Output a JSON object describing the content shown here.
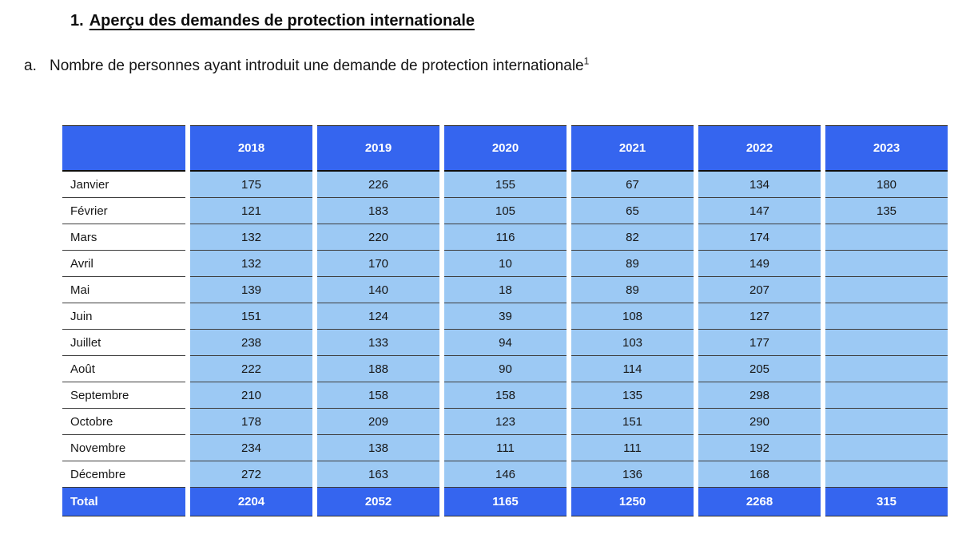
{
  "page": {
    "heading_number": "1.",
    "heading_text": "Aperçu des demandes de protection internationale",
    "item_letter": "a.",
    "item_text": "Nombre de personnes ayant introduit une demande de protection internationale",
    "footnote_ref": "1"
  },
  "colors": {
    "header_blue": "#3565EF",
    "cell_light_blue": "#9CC9F4",
    "header_text": "#FFFFFF",
    "body_text": "#161616"
  },
  "table": {
    "corner_label": "",
    "years": [
      "2018",
      "2019",
      "2020",
      "2021",
      "2022",
      "2023"
    ],
    "rows": [
      {
        "month": "Janvier",
        "values": [
          "175",
          "226",
          "155",
          "67",
          "134",
          "180"
        ]
      },
      {
        "month": "Février",
        "values": [
          "121",
          "183",
          "105",
          "65",
          "147",
          "135"
        ]
      },
      {
        "month": "Mars",
        "values": [
          "132",
          "220",
          "116",
          "82",
          "174",
          ""
        ]
      },
      {
        "month": "Avril",
        "values": [
          "132",
          "170",
          "10",
          "89",
          "149",
          ""
        ]
      },
      {
        "month": "Mai",
        "values": [
          "139",
          "140",
          "18",
          "89",
          "207",
          ""
        ]
      },
      {
        "month": "Juin",
        "values": [
          "151",
          "124",
          "39",
          "108",
          "127",
          ""
        ]
      },
      {
        "month": "Juillet",
        "values": [
          "238",
          "133",
          "94",
          "103",
          "177",
          ""
        ]
      },
      {
        "month": "Août",
        "values": [
          "222",
          "188",
          "90",
          "114",
          "205",
          ""
        ]
      },
      {
        "month": "Septembre",
        "values": [
          "210",
          "158",
          "158",
          "135",
          "298",
          ""
        ]
      },
      {
        "month": "Octobre",
        "values": [
          "178",
          "209",
          "123",
          "151",
          "290",
          ""
        ]
      },
      {
        "month": "Novembre",
        "values": [
          "234",
          "138",
          "111",
          "111",
          "192",
          ""
        ]
      },
      {
        "month": "Décembre",
        "values": [
          "272",
          "163",
          "146",
          "136",
          "168",
          ""
        ]
      }
    ],
    "total": {
      "label": "Total",
      "values": [
        "2204",
        "2052",
        "1165",
        "1250",
        "2268",
        "315"
      ]
    }
  }
}
